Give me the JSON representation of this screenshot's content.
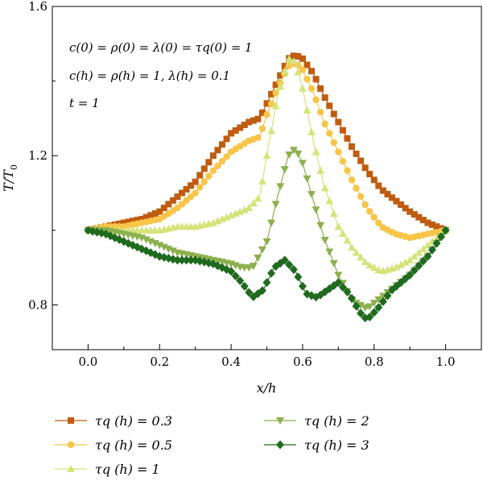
{
  "chart_data": {
    "type": "line",
    "xlabel": "x/h",
    "ylabel": "T/T0",
    "xlim": [
      -0.1,
      1.1
    ],
    "ylim": [
      0.68,
      1.6
    ],
    "x_ticks": [
      0.0,
      0.2,
      0.4,
      0.6,
      0.8,
      1.0
    ],
    "x_tick_labels": [
      "0.0",
      "0.2",
      "0.4",
      "0.6",
      "0.8",
      "1.0"
    ],
    "y_ticks": [
      0.8,
      1.2,
      1.6
    ],
    "y_tick_labels": [
      "0.8",
      "1.2",
      "1.6"
    ],
    "grid": false,
    "annotations": [
      "c(0) = ρ(0) = λ(0) = τq(0) = 1",
      "c(h) = ρ(h) = 1, λ(h) = 0.1",
      "t = 1"
    ],
    "legend_placement": "bottom",
    "series": [
      {
        "name": "τq (h) = 0.3",
        "color": "#c05c10",
        "marker": "square",
        "points": [
          [
            0.0,
            1.0
          ],
          [
            0.05,
            1.01
          ],
          [
            0.1,
            1.02
          ],
          [
            0.15,
            1.03
          ],
          [
            0.2,
            1.05
          ],
          [
            0.25,
            1.09
          ],
          [
            0.3,
            1.13
          ],
          [
            0.35,
            1.2
          ],
          [
            0.4,
            1.26
          ],
          [
            0.45,
            1.29
          ],
          [
            0.48,
            1.3
          ],
          [
            0.5,
            1.34
          ],
          [
            0.53,
            1.4
          ],
          [
            0.56,
            1.46
          ],
          [
            0.58,
            1.47
          ],
          [
            0.6,
            1.46
          ],
          [
            0.63,
            1.42
          ],
          [
            0.66,
            1.36
          ],
          [
            0.7,
            1.29
          ],
          [
            0.74,
            1.22
          ],
          [
            0.78,
            1.16
          ],
          [
            0.82,
            1.11
          ],
          [
            0.86,
            1.08
          ],
          [
            0.9,
            1.05
          ],
          [
            0.95,
            1.02
          ],
          [
            1.0,
            1.0
          ]
        ]
      },
      {
        "name": "τq (h) = 0.5",
        "color": "#f7c548",
        "marker": "circle",
        "points": [
          [
            0.0,
            1.0
          ],
          [
            0.05,
            1.01
          ],
          [
            0.1,
            1.01
          ],
          [
            0.15,
            1.02
          ],
          [
            0.2,
            1.03
          ],
          [
            0.25,
            1.06
          ],
          [
            0.3,
            1.1
          ],
          [
            0.35,
            1.16
          ],
          [
            0.4,
            1.21
          ],
          [
            0.45,
            1.24
          ],
          [
            0.48,
            1.25
          ],
          [
            0.5,
            1.31
          ],
          [
            0.53,
            1.38
          ],
          [
            0.56,
            1.44
          ],
          [
            0.58,
            1.45
          ],
          [
            0.6,
            1.43
          ],
          [
            0.63,
            1.37
          ],
          [
            0.66,
            1.29
          ],
          [
            0.7,
            1.21
          ],
          [
            0.74,
            1.13
          ],
          [
            0.78,
            1.06
          ],
          [
            0.82,
            1.01
          ],
          [
            0.86,
            0.99
          ],
          [
            0.9,
            0.98
          ],
          [
            0.95,
            0.99
          ],
          [
            1.0,
            1.0
          ]
        ]
      },
      {
        "name": "τq (h) = 1",
        "color": "#d5e47a",
        "marker": "triangle-up",
        "points": [
          [
            0.0,
            1.0
          ],
          [
            0.05,
            1.0
          ],
          [
            0.1,
            1.0
          ],
          [
            0.15,
            1.0
          ],
          [
            0.2,
            1.0
          ],
          [
            0.25,
            1.01
          ],
          [
            0.3,
            1.01
          ],
          [
            0.35,
            1.02
          ],
          [
            0.4,
            1.04
          ],
          [
            0.45,
            1.06
          ],
          [
            0.48,
            1.09
          ],
          [
            0.5,
            1.2
          ],
          [
            0.53,
            1.36
          ],
          [
            0.56,
            1.46
          ],
          [
            0.58,
            1.45
          ],
          [
            0.6,
            1.38
          ],
          [
            0.63,
            1.24
          ],
          [
            0.66,
            1.12
          ],
          [
            0.7,
            1.01
          ],
          [
            0.74,
            0.95
          ],
          [
            0.78,
            0.91
          ],
          [
            0.82,
            0.89
          ],
          [
            0.86,
            0.9
          ],
          [
            0.9,
            0.92
          ],
          [
            0.95,
            0.96
          ],
          [
            1.0,
            1.0
          ]
        ]
      },
      {
        "name": "τq (h) = 2",
        "color": "#8db04e",
        "marker": "triangle-down",
        "points": [
          [
            0.0,
            1.0
          ],
          [
            0.05,
            1.0
          ],
          [
            0.1,
            0.99
          ],
          [
            0.15,
            0.98
          ],
          [
            0.2,
            0.96
          ],
          [
            0.25,
            0.94
          ],
          [
            0.3,
            0.93
          ],
          [
            0.35,
            0.92
          ],
          [
            0.4,
            0.91
          ],
          [
            0.43,
            0.9
          ],
          [
            0.46,
            0.9
          ],
          [
            0.5,
            0.97
          ],
          [
            0.53,
            1.09
          ],
          [
            0.56,
            1.2
          ],
          [
            0.58,
            1.22
          ],
          [
            0.6,
            1.18
          ],
          [
            0.63,
            1.08
          ],
          [
            0.66,
            0.98
          ],
          [
            0.7,
            0.88
          ],
          [
            0.74,
            0.81
          ],
          [
            0.78,
            0.79
          ],
          [
            0.82,
            0.82
          ],
          [
            0.86,
            0.85
          ],
          [
            0.9,
            0.88
          ],
          [
            0.95,
            0.93
          ],
          [
            1.0,
            1.0
          ]
        ]
      },
      {
        "name": "τq (h) = 3",
        "color": "#1e6a1e",
        "marker": "diamond",
        "points": [
          [
            0.0,
            1.0
          ],
          [
            0.05,
            0.99
          ],
          [
            0.1,
            0.97
          ],
          [
            0.15,
            0.95
          ],
          [
            0.2,
            0.93
          ],
          [
            0.25,
            0.92
          ],
          [
            0.3,
            0.92
          ],
          [
            0.35,
            0.91
          ],
          [
            0.4,
            0.89
          ],
          [
            0.43,
            0.86
          ],
          [
            0.46,
            0.82
          ],
          [
            0.49,
            0.84
          ],
          [
            0.52,
            0.9
          ],
          [
            0.55,
            0.92
          ],
          [
            0.58,
            0.89
          ],
          [
            0.61,
            0.83
          ],
          [
            0.64,
            0.82
          ],
          [
            0.67,
            0.84
          ],
          [
            0.7,
            0.86
          ],
          [
            0.73,
            0.83
          ],
          [
            0.76,
            0.78
          ],
          [
            0.78,
            0.76
          ],
          [
            0.81,
            0.79
          ],
          [
            0.85,
            0.84
          ],
          [
            0.9,
            0.88
          ],
          [
            0.95,
            0.93
          ],
          [
            1.0,
            1.0
          ]
        ]
      }
    ]
  }
}
